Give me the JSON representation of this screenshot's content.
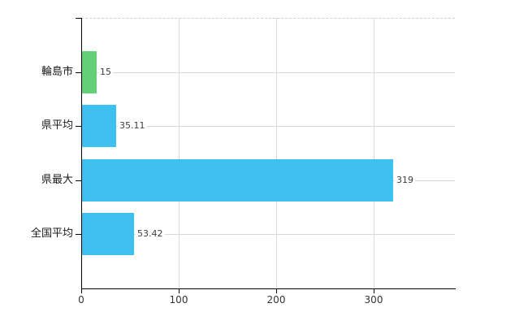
{
  "chart_data": {
    "type": "bar",
    "orientation": "horizontal",
    "title": "",
    "xlabel": "",
    "ylabel": "",
    "categories": [
      "輪島市",
      "県平均",
      "県最大",
      "全国平均"
    ],
    "values": [
      15,
      35.11,
      319,
      53.42
    ],
    "value_labels": [
      "15",
      "35.11",
      "319",
      "53.42"
    ],
    "bar_colors": [
      "#61d077",
      "#3ec1f0",
      "#3ec1f0",
      "#3ec1f0"
    ],
    "x_ticks": [
      0,
      100,
      200,
      300
    ],
    "x_tick_labels": [
      "0",
      "100",
      "200",
      "300"
    ],
    "xlim": [
      0,
      383
    ],
    "grid": true,
    "legend": null,
    "colors": {
      "bar_green": "#61d077",
      "bar_blue": "#3ec1f0",
      "gridline": "#d8d8d8",
      "top_border_dashed": "#cfcfcf",
      "axis": "#000000",
      "text": "#1a1a1a",
      "background": "#ffffff"
    }
  }
}
